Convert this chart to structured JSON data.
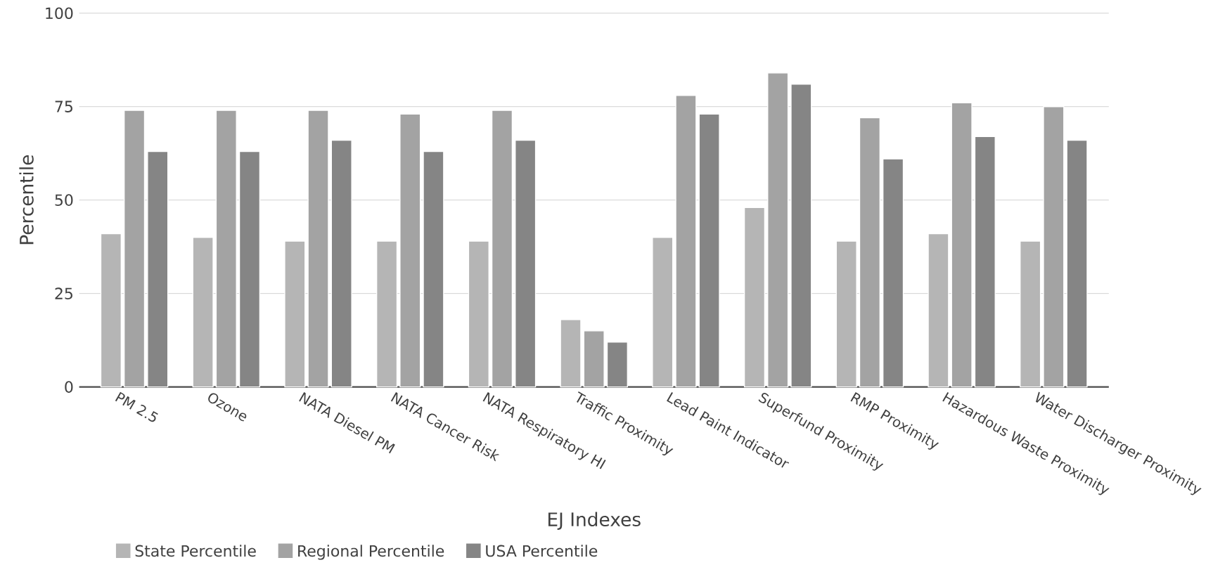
{
  "chart_data": {
    "type": "bar",
    "xlabel": "EJ Indexes",
    "ylabel": "Percentile",
    "categories": [
      "PM 2.5",
      "Ozone",
      "NATA Diesel PM",
      "NATA Cancer Risk",
      "NATA Respiratory HI",
      "Traffic Proximity",
      "Lead Paint Indicator",
      "Superfund Proximity",
      "RMP Proximity",
      "Hazardous Waste Proximity",
      "Water Discharger Proximity"
    ],
    "series": [
      {
        "name": "State Percentile",
        "color": "#b5b5b5",
        "values": [
          41,
          40,
          39,
          39,
          39,
          18,
          40,
          48,
          39,
          41,
          39
        ]
      },
      {
        "name": "Regional Percentile",
        "color": "#a3a3a3",
        "values": [
          74,
          74,
          74,
          73,
          74,
          15,
          78,
          84,
          72,
          76,
          75
        ]
      },
      {
        "name": "USA Percentile",
        "color": "#858585",
        "values": [
          63,
          63,
          66,
          63,
          66,
          12,
          73,
          81,
          61,
          67,
          66
        ]
      }
    ],
    "ylim": [
      0,
      100
    ],
    "yticks": [
      0,
      25,
      50,
      75,
      100
    ],
    "grid": "y",
    "legend": "bottom left"
  }
}
